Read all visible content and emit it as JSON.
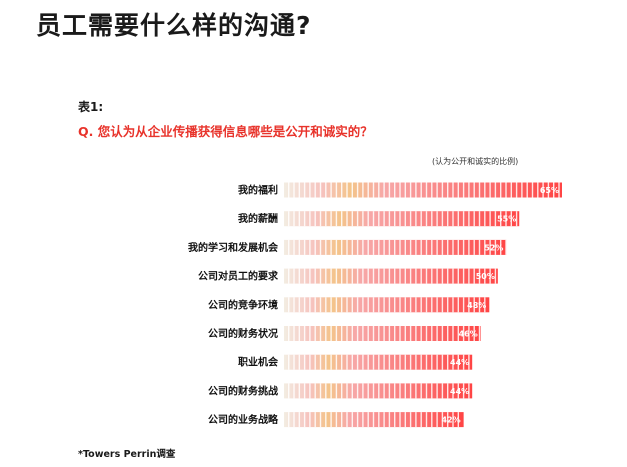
{
  "title": "员工需要什么样的沟通?",
  "table_label": "表1:",
  "question": "Q. 您认为从企业传播获得信息哪些是公开和诚实的？",
  "unit_note": "(认为公开和诚实的比例)",
  "source": "*Towers Perrin调查",
  "colors": {
    "accent": "#e8332b",
    "bar_end": "#ff4d4d",
    "bar_mid": "#f7a8a8",
    "bar_warm": "#f4c48a",
    "bar_light": "#f3e9d8"
  },
  "chart_data": {
    "type": "bar",
    "orientation": "horizontal",
    "categories": [
      "我的福利",
      "我的薪酬",
      "我的学习和发展机会",
      "公司对员工的要求",
      "公司的竞争环境",
      "公司的财务状况",
      "职业机会",
      "公司的财务挑战",
      "公司的业务战略"
    ],
    "values": [
      65,
      55,
      52,
      50,
      48,
      46,
      44,
      44,
      42
    ],
    "value_labels": [
      "65%",
      "55%",
      "52%",
      "50%",
      "48%",
      "46%",
      "44%",
      "44%",
      "42%"
    ],
    "title": "",
    "xlabel": "",
    "ylabel": "",
    "xlim": [
      0,
      65
    ],
    "grid": false,
    "legend": "none"
  }
}
